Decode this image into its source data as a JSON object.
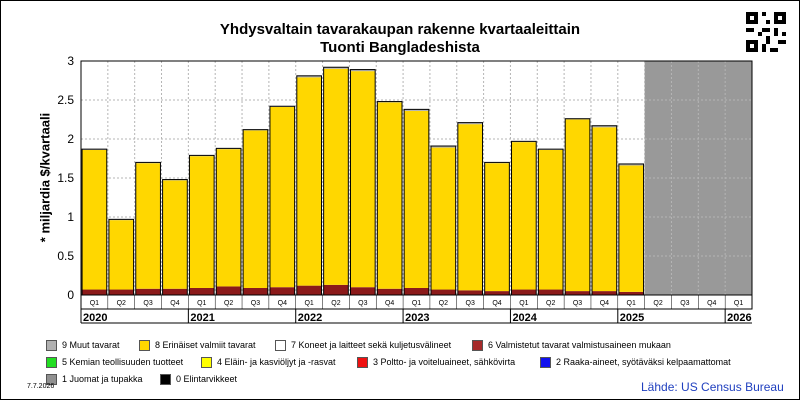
{
  "title": "Yhdysvaltain tavarakaupan rakenne kvartaaleittain",
  "subtitle": "Tuonti Bangladeshista",
  "ylabel": "* miljardia $/kvartaali",
  "date_stamp": "7.7.2026",
  "source": "Lähde: US Census Bureau",
  "qr_icon": "qr-code-icon",
  "colors": {
    "yellow": "#ffd700",
    "dark_red": "#8b1a1a",
    "top_gray": "#b0b0b0",
    "unused_bg": "#999999",
    "grid": "#b5b5b5"
  },
  "legend": [
    {
      "label": "9 Muut tavarat",
      "color": "#b0b0b0"
    },
    {
      "label": "8 Erinäiset valmiit tavarat",
      "color": "#ffd700"
    },
    {
      "label": "7 Koneet ja laitteet sekä kuljetusvälineet",
      "color": "#ffffff"
    },
    {
      "label": "6 Valmistetut tavarat valmistusaineen mukaan",
      "color": "#a52a2a"
    },
    {
      "label": "5 Kemian teollisuuden tuotteet",
      "color": "#22dd22"
    },
    {
      "label": "4 Eläin- ja kasviöljyt ja -rasvat",
      "color": "#ffff00"
    },
    {
      "label": "3 Poltto- ja voiteluaineet, sähkövirta",
      "color": "#ee1111"
    },
    {
      "label": "2 Raaka-aineet, syötäväksi kelpaamattomat",
      "color": "#1111ee"
    },
    {
      "label": "1 Juomat ja tupakka",
      "color": "#909090"
    },
    {
      "label": "0 Elintarvikkeet",
      "color": "#000000"
    }
  ],
  "chart_data": {
    "type": "bar",
    "stacked": true,
    "title": "Yhdysvaltain tavarakaupan rakenne kvartaaleittain",
    "subtitle": "Tuonti Bangladeshista",
    "ylabel": "* miljardia $/kvartaali",
    "ylim": [
      0,
      3
    ],
    "yticks": [
      "0",
      "0.5",
      "1",
      "1.5",
      "2",
      "2.5",
      "3"
    ],
    "grid": true,
    "categories": [
      "Q1",
      "Q2",
      "Q3",
      "Q4",
      "Q1",
      "Q2",
      "Q3",
      "Q4",
      "Q1",
      "Q2",
      "Q3",
      "Q4",
      "Q1",
      "Q2",
      "Q3",
      "Q4",
      "Q1",
      "Q2",
      "Q3",
      "Q4",
      "Q1",
      "Q2",
      "Q3",
      "Q4",
      "Q1"
    ],
    "years": [
      "2020",
      "2021",
      "2022",
      "2023",
      "2024",
      "2025",
      "2026"
    ],
    "series": [
      {
        "name": "6 Valmistetut tavarat valmistusaineen mukaan",
        "values": [
          0.07,
          0.07,
          0.08,
          0.08,
          0.09,
          0.11,
          0.09,
          0.1,
          0.12,
          0.13,
          0.1,
          0.08,
          0.09,
          0.07,
          0.06,
          0.05,
          0.07,
          0.07,
          0.05,
          0.05,
          0.04,
          null,
          null,
          null,
          null
        ]
      },
      {
        "name": "8 Erinäiset valmiit tavarat",
        "values": [
          1.79,
          0.89,
          1.61,
          1.39,
          1.69,
          1.76,
          2.02,
          2.31,
          2.67,
          2.77,
          2.77,
          2.39,
          2.27,
          1.82,
          2.13,
          1.64,
          1.89,
          1.79,
          2.2,
          2.1,
          1.62,
          null,
          null,
          null,
          null
        ]
      },
      {
        "name": "9 Muut tavarat",
        "values": [
          0.01,
          0.01,
          0.01,
          0.01,
          0.01,
          0.01,
          0.01,
          0.01,
          0.02,
          0.02,
          0.02,
          0.01,
          0.02,
          0.02,
          0.02,
          0.01,
          0.01,
          0.01,
          0.01,
          0.02,
          0.02,
          null,
          null,
          null,
          null
        ]
      }
    ],
    "totals": [
      1.87,
      0.97,
      1.7,
      1.48,
      1.79,
      1.88,
      2.12,
      2.42,
      2.81,
      2.92,
      2.89,
      2.48,
      2.38,
      1.91,
      2.21,
      1.7,
      1.97,
      1.87,
      2.26,
      2.17,
      1.68,
      null,
      null,
      null,
      null
    ]
  }
}
